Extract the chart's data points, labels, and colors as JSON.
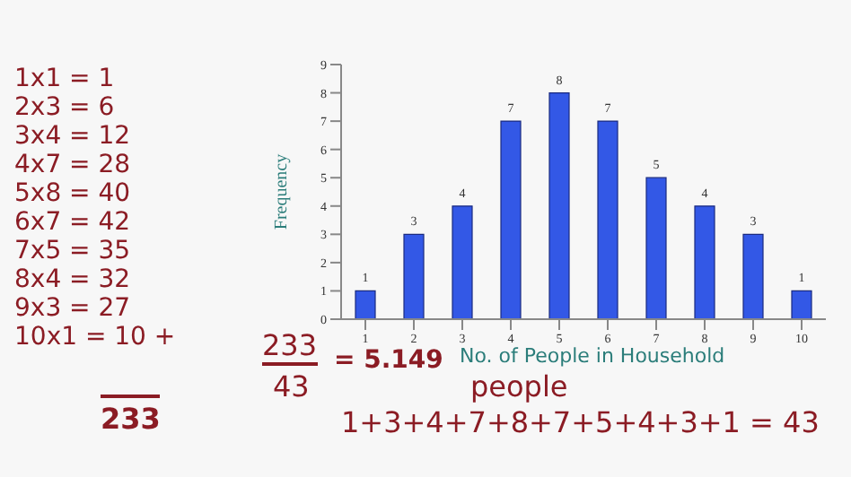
{
  "chart_data": {
    "type": "bar",
    "xlabel": "No. of People in Household",
    "ylabel": "Frequency",
    "categories": [
      "1",
      "2",
      "3",
      "4",
      "5",
      "6",
      "7",
      "8",
      "9",
      "10"
    ],
    "values": [
      1,
      3,
      4,
      7,
      8,
      7,
      5,
      4,
      3,
      1
    ],
    "color": "#3358e6",
    "data_labels": true,
    "ylim": [
      0,
      9
    ],
    "yticks": [
      0,
      1,
      2,
      3,
      4,
      5,
      6,
      7,
      8,
      9
    ],
    "annotations": [
      "1x1 = 1",
      "2x3 = 6",
      "3x4 = 12",
      "4x7 = 28",
      "5x8 = 40",
      "6x7 = 42",
      "7x5 = 35",
      "8x4 = 32",
      "9x3 = 27",
      "10x1 = 10 +",
      "233",
      "233",
      "43",
      "= 5.149",
      "people",
      "1+3+4+7+8+7+5+4+3+1 = 43"
    ]
  }
}
